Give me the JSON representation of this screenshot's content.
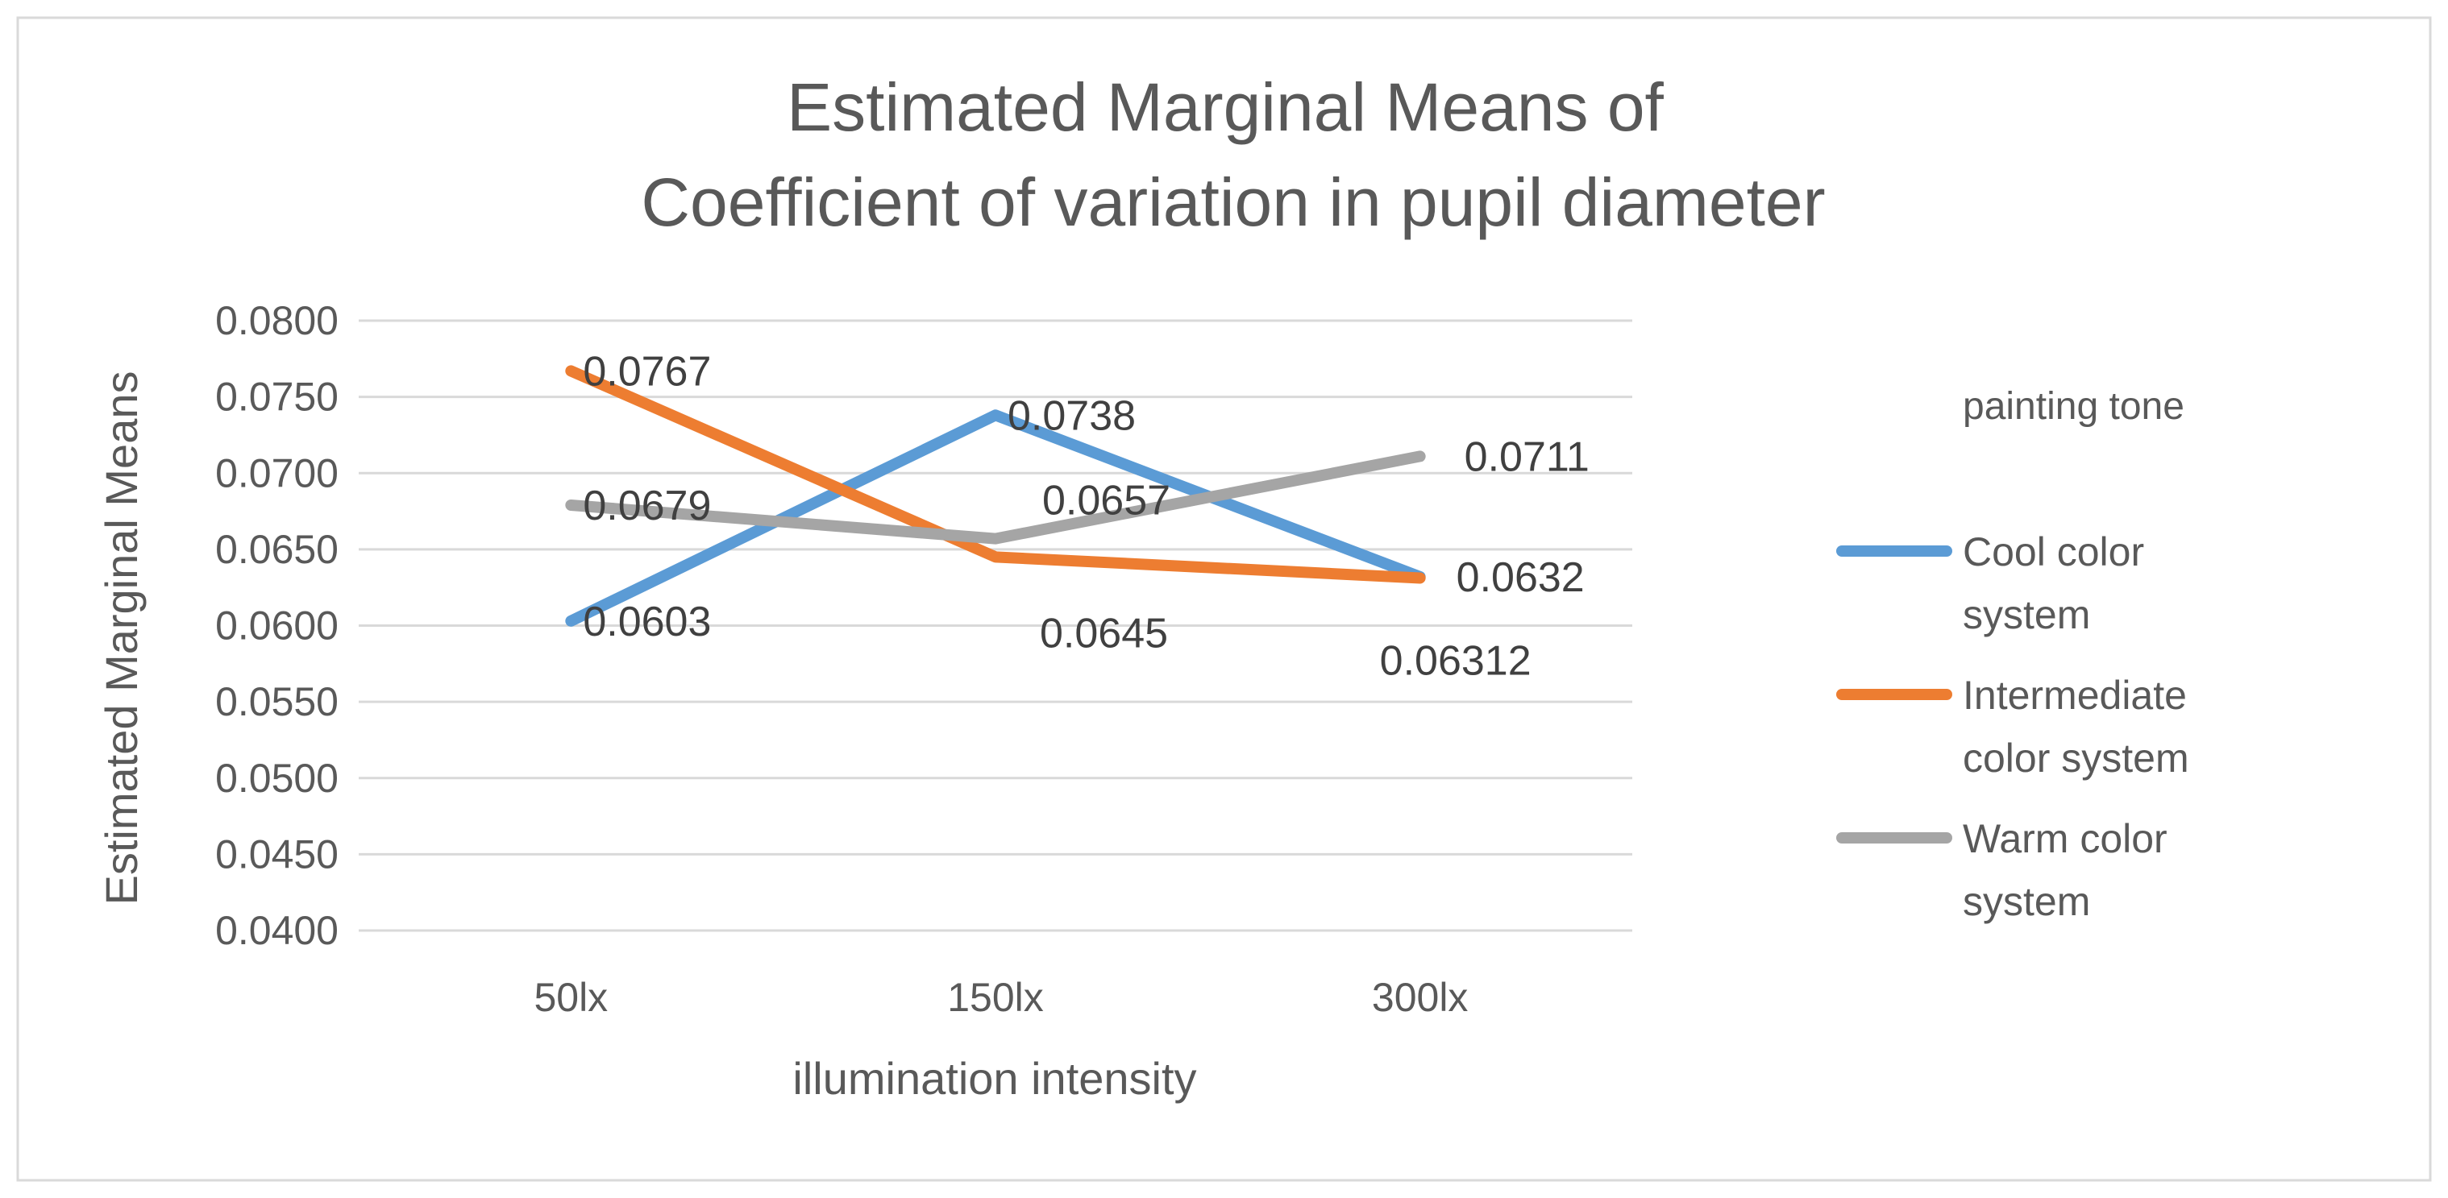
{
  "chart_data": {
    "type": "line",
    "title_lines": [
      "Estimated Marginal Means of",
      "Coefficient of variation in pupil diameter"
    ],
    "xlabel": "illumination intensity",
    "ylabel": "Estimated Marginal Means",
    "categories": [
      "50lx",
      "150lx",
      "300lx"
    ],
    "ylim": [
      0.04,
      0.08
    ],
    "yticks": [
      "0.0800",
      "0.0750",
      "0.0700",
      "0.0650",
      "0.0600",
      "0.0550",
      "0.0500",
      "0.0450",
      "0.0400"
    ],
    "legend_title": "painting tone",
    "legend_position": "right",
    "grid": true,
    "series": [
      {
        "name": "Cool color system",
        "legend_lines": [
          "Cool color",
          "system"
        ],
        "color": "#5B9BD5",
        "values": [
          0.0603,
          0.0738,
          0.0632
        ],
        "labels": [
          "0.0603",
          "0.0738",
          "0.0632"
        ]
      },
      {
        "name": "Intermediate color system",
        "legend_lines": [
          "Intermediate",
          "color system"
        ],
        "color": "#ED7D31",
        "values": [
          0.0767,
          0.0645,
          0.06312
        ],
        "labels": [
          "0.0767",
          "0.0645",
          "0.06312"
        ]
      },
      {
        "name": "Warm color system",
        "legend_lines": [
          "Warm color",
          "system"
        ],
        "color": "#A5A5A5",
        "values": [
          0.0679,
          0.0657,
          0.0711
        ],
        "labels": [
          "0.0679",
          "0.0657",
          "0.0711"
        ]
      }
    ]
  }
}
